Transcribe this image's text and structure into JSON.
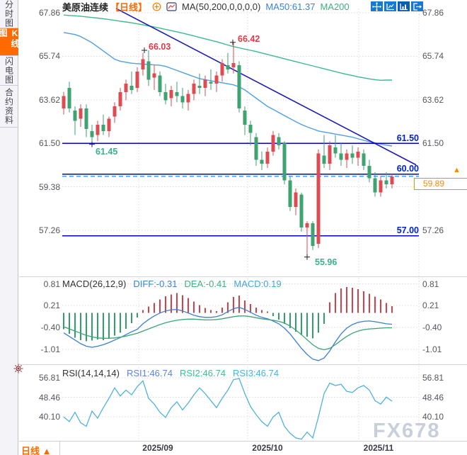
{
  "ui": {
    "sidebar": {
      "tabs": [
        {
          "label": "分时图",
          "active": false
        },
        {
          "label": "K线图",
          "active": true
        },
        {
          "label": "闪电图",
          "active": false
        },
        {
          "label": "合约资料",
          "active": false
        }
      ]
    },
    "header": {
      "symbol": "美原油连续",
      "period_tag": "【日线】",
      "ma_settings": "MA(50,200,0,0,0,0)",
      "ma50_value": "MA50:61.37",
      "ma200_value": "MA200",
      "toolbar_icons": [
        "move-icon",
        "axis-scale-icon",
        "axis-scale-active-icon",
        "exit-chart-icon"
      ]
    },
    "macd_header": {
      "title": "MACD(26,12,9)",
      "diff": "DIFF:-0.31",
      "dea": "DEA:-0.41",
      "macd": "MACD:0.19"
    },
    "rsi_header": {
      "title": "RSI(14,14,14)",
      "rsi1": "RSI1:46.74",
      "rsi2": "RSI2:46.74",
      "rsi3": "RSI3:46.74"
    },
    "footer": {
      "period": "日线",
      "arrow": "▲"
    },
    "watermark": "FX678"
  },
  "colors": {
    "up": "#DE4B52",
    "down": "#3EA271",
    "ma50": "#4D9FE8",
    "ma200": "#3DBA8C",
    "trendline": "#1A1AB8",
    "hline": "#0000D0",
    "current_dashed": "#2E9BF0",
    "accent_orange": "#FF8A00",
    "grid": "#DBDBE3",
    "macd_diff": "#3A7FD6",
    "macd_dea": "#3CA474",
    "rsi_line": "#4FB2DE",
    "marker": "#222222"
  },
  "chart_data": [
    {
      "name": "main",
      "type": "candlestick",
      "title": "美原油连续 日线 (US Crude Oil Continuous, Daily)",
      "ylim": [
        56.2,
        68.1
      ],
      "y_ticks": [
        "67.86",
        "65.74",
        "63.62",
        "61.50",
        "59.38",
        "57.26"
      ],
      "y_tick_values": [
        67.86,
        65.74,
        63.62,
        61.5,
        59.38,
        57.26
      ],
      "x_ticks": [
        "2025/09",
        "2025/10",
        "2025/11"
      ],
      "grid": true,
      "candles_ohlc": [
        [
          63.2,
          64.0,
          62.9,
          63.8
        ],
        [
          64.2,
          64.5,
          63.0,
          63.2
        ],
        [
          63.1,
          63.3,
          61.9,
          62.6
        ],
        [
          62.7,
          63.4,
          62.3,
          63.2
        ],
        [
          63.2,
          63.4,
          61.8,
          62.2
        ],
        [
          62.1,
          62.4,
          61.45,
          61.8
        ],
        [
          61.9,
          62.6,
          61.6,
          62.4
        ],
        [
          62.4,
          62.9,
          61.9,
          62.1
        ],
        [
          62.1,
          62.8,
          61.8,
          62.7
        ],
        [
          62.8,
          63.5,
          62.5,
          63.3
        ],
        [
          63.3,
          64.2,
          63.1,
          64.0
        ],
        [
          64.0,
          64.6,
          63.6,
          64.4
        ],
        [
          64.3,
          65.0,
          63.9,
          64.1
        ],
        [
          64.2,
          65.2,
          64.0,
          65.0
        ],
        [
          65.1,
          65.9,
          64.8,
          65.6
        ],
        [
          65.5,
          66.03,
          64.3,
          64.6
        ],
        [
          64.7,
          65.3,
          64.1,
          64.9
        ],
        [
          64.8,
          65.0,
          63.8,
          64.0
        ],
        [
          64.0,
          64.4,
          63.4,
          63.6
        ],
        [
          63.7,
          64.3,
          63.3,
          64.1
        ],
        [
          64.0,
          64.5,
          63.5,
          63.8
        ],
        [
          63.8,
          64.2,
          63.2,
          63.5
        ],
        [
          63.5,
          64.1,
          63.1,
          63.9
        ],
        [
          63.9,
          64.6,
          63.6,
          64.4
        ],
        [
          64.3,
          64.9,
          63.9,
          64.2
        ],
        [
          64.2,
          64.8,
          63.8,
          64.6
        ],
        [
          64.5,
          65.1,
          64.1,
          64.4
        ],
        [
          64.4,
          65.0,
          64.0,
          64.8
        ],
        [
          64.8,
          65.6,
          64.5,
          65.4
        ],
        [
          65.3,
          65.9,
          64.9,
          65.1
        ],
        [
          65.2,
          66.42,
          64.9,
          65.4
        ],
        [
          65.3,
          65.5,
          63.0,
          63.2
        ],
        [
          63.1,
          63.3,
          61.9,
          62.4
        ],
        [
          62.4,
          62.6,
          61.4,
          62.0
        ],
        [
          61.8,
          62.0,
          60.4,
          60.7
        ],
        [
          60.7,
          61.1,
          60.2,
          60.5
        ],
        [
          60.5,
          61.3,
          60.3,
          61.1
        ],
        [
          61.1,
          62.1,
          60.9,
          61.9
        ],
        [
          61.8,
          62.0,
          61.2,
          61.4
        ],
        [
          61.5,
          61.6,
          59.5,
          59.7
        ],
        [
          59.7,
          59.9,
          58.2,
          58.4
        ],
        [
          58.4,
          59.3,
          58.0,
          59.1
        ],
        [
          59.0,
          59.1,
          57.2,
          57.4
        ],
        [
          57.4,
          57.7,
          55.96,
          57.6
        ],
        [
          57.6,
          57.7,
          56.3,
          56.5
        ],
        [
          56.6,
          61.2,
          56.4,
          61.0
        ],
        [
          60.9,
          61.9,
          60.3,
          60.5
        ],
        [
          60.5,
          61.6,
          60.2,
          61.4
        ],
        [
          61.3,
          61.9,
          60.8,
          61.0
        ],
        [
          61.0,
          61.5,
          60.4,
          60.7
        ],
        [
          60.7,
          61.2,
          60.3,
          61.0
        ],
        [
          61.0,
          61.4,
          60.5,
          60.8
        ],
        [
          60.8,
          61.3,
          60.4,
          61.1
        ],
        [
          61.0,
          61.2,
          60.2,
          60.4
        ],
        [
          60.4,
          60.7,
          59.6,
          59.8
        ],
        [
          59.8,
          60.1,
          58.9,
          59.1
        ],
        [
          59.1,
          59.9,
          58.9,
          59.7
        ],
        [
          59.7,
          60.1,
          59.3,
          59.5
        ],
        [
          59.5,
          60.0,
          59.3,
          59.89
        ]
      ],
      "ma50": [
        66.9,
        66.85,
        66.8,
        66.7,
        66.55,
        66.4,
        66.2,
        66.0,
        65.8,
        65.6,
        65.5,
        65.45,
        65.4,
        65.38,
        65.36,
        65.34,
        65.32,
        65.3,
        65.25,
        65.15,
        65.05,
        64.95,
        64.85,
        64.75,
        64.65,
        64.6,
        64.55,
        64.5,
        64.45,
        64.4,
        64.35,
        64.25,
        64.1,
        63.9,
        63.7,
        63.5,
        63.3,
        63.15,
        63.0,
        62.85,
        62.7,
        62.55,
        62.42,
        62.3,
        62.2,
        62.1,
        62.05,
        62.0,
        61.95,
        61.9,
        61.85,
        61.8,
        61.72,
        61.65,
        61.58,
        61.52,
        61.46,
        61.41,
        61.37
      ],
      "ma200": [
        67.75,
        67.73,
        67.71,
        67.69,
        67.66,
        67.63,
        67.6,
        67.57,
        67.53,
        67.49,
        67.45,
        67.41,
        67.37,
        67.32,
        67.27,
        67.22,
        67.17,
        67.11,
        67.05,
        66.99,
        66.93,
        66.87,
        66.8,
        66.73,
        66.66,
        66.59,
        66.52,
        66.45,
        66.37,
        66.29,
        66.21,
        66.15,
        66.09,
        66.03,
        65.97,
        65.9,
        65.83,
        65.76,
        65.69,
        65.62,
        65.55,
        65.48,
        65.41,
        65.34,
        65.27,
        65.2,
        65.13,
        65.06,
        64.99,
        64.92,
        64.86,
        64.8,
        64.74,
        64.69,
        64.64,
        64.6,
        64.57,
        64.58,
        64.58
      ],
      "trendline": {
        "x1": 164,
        "p1": 68.07,
        "x2": 588,
        "p2": 60.45
      },
      "hlines": [
        {
          "label": "61.50",
          "price": 61.5
        },
        {
          "label": "60.00",
          "price": 60.0
        },
        {
          "label": "57.00",
          "price": 57.0
        }
      ],
      "current_price": 59.89,
      "current_price_label": "59.89",
      "annotations": [
        {
          "text": "66.03",
          "x": 204,
          "price": 66.03,
          "kind": "high"
        },
        {
          "text": "66.42",
          "x": 329,
          "price": 66.42,
          "kind": "high"
        },
        {
          "text": "61.45",
          "x": 130,
          "price": 61.45,
          "kind": "low"
        },
        {
          "text": "55.96",
          "x": 434,
          "price": 55.96,
          "kind": "low"
        }
      ]
    },
    {
      "name": "macd",
      "type": "bar",
      "title": "MACD(26,12,9)",
      "y_ticks": [
        "0.81",
        "0.21",
        "-0.40",
        "-1.01"
      ],
      "y_tick_values": [
        0.81,
        0.21,
        -0.4,
        -1.01
      ],
      "histogram": [
        -0.45,
        -0.58,
        -0.68,
        -0.75,
        -0.78,
        -0.76,
        -0.73,
        -0.75,
        -0.7,
        -0.63,
        -0.55,
        -0.44,
        -0.28,
        -0.12,
        0.08,
        0.18,
        0.28,
        0.38,
        0.47,
        0.52,
        0.55,
        0.5,
        0.42,
        0.32,
        0.22,
        0.14,
        0.08,
        0.05,
        0.15,
        0.3,
        0.45,
        0.49,
        0.35,
        0.25,
        0.15,
        0.08,
        0.04,
        -0.08,
        -0.18,
        -0.3,
        -0.42,
        -0.52,
        -0.6,
        -0.66,
        -0.7,
        -0.55,
        -0.3,
        0.3,
        0.55,
        0.68,
        0.72,
        0.7,
        0.66,
        0.6,
        0.54,
        0.46,
        0.38,
        0.28,
        0.19
      ],
      "diff": [
        -0.55,
        -0.65,
        -0.75,
        -0.85,
        -0.92,
        -0.95,
        -0.92,
        -0.88,
        -0.82,
        -0.75,
        -0.68,
        -0.6,
        -0.52,
        -0.45,
        -0.3,
        -0.18,
        -0.08,
        0.0,
        0.06,
        0.09,
        0.1,
        0.06,
        0.0,
        -0.06,
        -0.1,
        -0.12,
        -0.12,
        -0.1,
        -0.05,
        0.04,
        0.12,
        0.16,
        0.1,
        0.02,
        -0.06,
        -0.12,
        -0.16,
        -0.22,
        -0.3,
        -0.42,
        -0.58,
        -0.78,
        -0.98,
        -1.15,
        -1.28,
        -1.32,
        -1.25,
        -1.05,
        -0.8,
        -0.58,
        -0.42,
        -0.32,
        -0.26,
        -0.23,
        -0.22,
        -0.24,
        -0.27,
        -0.3,
        -0.31
      ],
      "dea": [
        -0.38,
        -0.44,
        -0.5,
        -0.56,
        -0.62,
        -0.66,
        -0.69,
        -0.7,
        -0.7,
        -0.69,
        -0.67,
        -0.64,
        -0.6,
        -0.56,
        -0.5,
        -0.44,
        -0.38,
        -0.32,
        -0.27,
        -0.23,
        -0.2,
        -0.18,
        -0.17,
        -0.17,
        -0.18,
        -0.19,
        -0.19,
        -0.18,
        -0.16,
        -0.13,
        -0.1,
        -0.08,
        -0.08,
        -0.1,
        -0.13,
        -0.16,
        -0.18,
        -0.2,
        -0.23,
        -0.28,
        -0.36,
        -0.47,
        -0.6,
        -0.74,
        -0.88,
        -0.98,
        -1.02,
        -0.98,
        -0.88,
        -0.76,
        -0.65,
        -0.56,
        -0.5,
        -0.46,
        -0.44,
        -0.43,
        -0.42,
        -0.41,
        -0.41
      ]
    },
    {
      "name": "rsi",
      "type": "line",
      "title": "RSI(14,14,14)",
      "y_ticks": [
        "56.81",
        "48.46",
        "40.10"
      ],
      "y_tick_values": [
        56.81,
        48.46,
        40.1
      ],
      "values": [
        40.0,
        38.0,
        42.0,
        37.5,
        36.0,
        42.5,
        39.5,
        44.0,
        48.0,
        52.5,
        49.0,
        51.5,
        49.5,
        53.0,
        55.5,
        48.0,
        45.5,
        42.0,
        39.8,
        44.0,
        46.5,
        43.0,
        46.0,
        49.5,
        52.5,
        50.0,
        47.0,
        44.0,
        48.0,
        51.5,
        56.0,
        56.5,
        50.0,
        44.5,
        41.0,
        38.0,
        36.0,
        40.0,
        42.0,
        36.0,
        33.0,
        31.0,
        30.5,
        33.5,
        31.0,
        40.0,
        50.0,
        54.5,
        53.5,
        54.0,
        51.0,
        50.5,
        52.5,
        53.5,
        51.5,
        47.0,
        45.5,
        48.5,
        46.74
      ]
    }
  ]
}
